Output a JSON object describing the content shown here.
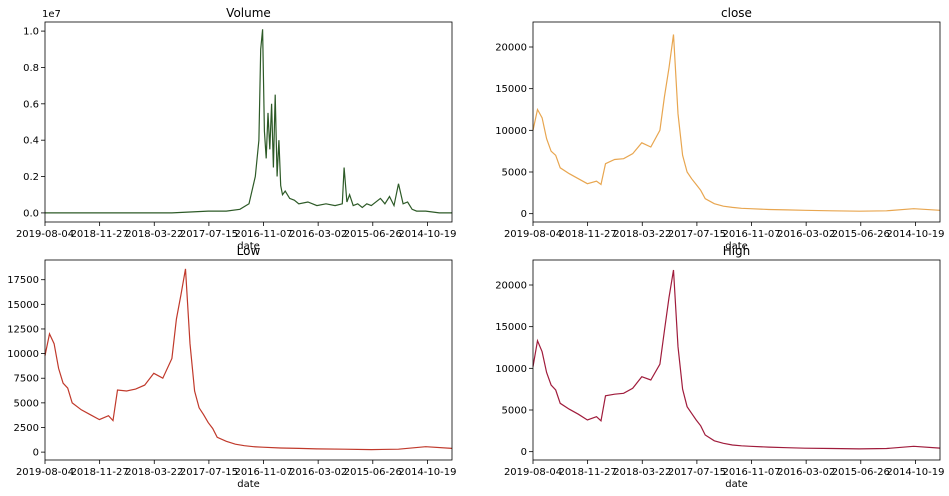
{
  "chart_data": [
    {
      "type": "line",
      "title": "Volume",
      "xlabel": "date",
      "ylabel": "",
      "y_offset_label": "1e7",
      "x_tick_labels": [
        "2019-08-04",
        "2018-11-27",
        "2018-03-22",
        "2017-07-15",
        "2016-11-07",
        "2016-03-02",
        "2015-06-26",
        "2014-10-19"
      ],
      "y_ticks": [
        0.0,
        0.2,
        0.4,
        0.6,
        0.8,
        1.0
      ],
      "y_tick_labels": [
        "0.0",
        "0.2",
        "0.4",
        "0.6",
        "0.8",
        "1.0"
      ],
      "ylim": [
        -0.05,
        1.05
      ],
      "color": "#2d5a27",
      "series": [
        {
          "x": [
            0,
            30,
            60,
            100,
            140,
            180,
            200,
            215,
            225,
            232,
            236,
            238,
            240,
            242,
            244,
            246,
            248,
            250,
            252,
            254,
            256,
            258,
            260,
            262,
            265,
            270,
            275,
            280,
            290,
            300,
            310,
            320,
            328,
            330,
            333,
            336,
            340,
            345,
            350,
            355,
            360,
            370,
            375,
            380,
            385,
            390,
            395,
            400,
            405,
            410,
            420,
            435,
            449
          ],
          "values": [
            0.0,
            0.0,
            0.0,
            0.0,
            0.0,
            0.01,
            0.01,
            0.02,
            0.05,
            0.2,
            0.4,
            0.9,
            1.01,
            0.45,
            0.3,
            0.55,
            0.35,
            0.6,
            0.25,
            0.65,
            0.2,
            0.4,
            0.15,
            0.1,
            0.12,
            0.08,
            0.07,
            0.05,
            0.06,
            0.04,
            0.05,
            0.04,
            0.05,
            0.25,
            0.06,
            0.1,
            0.04,
            0.05,
            0.03,
            0.05,
            0.04,
            0.08,
            0.05,
            0.09,
            0.04,
            0.16,
            0.05,
            0.06,
            0.02,
            0.01,
            0.01,
            0.0,
            0.0
          ]
        }
      ]
    },
    {
      "type": "line",
      "title": "close",
      "xlabel": "date",
      "ylabel": "",
      "x_tick_labels": [
        "2019-08-04",
        "2018-11-27",
        "2018-03-22",
        "2017-07-15",
        "2016-11-07",
        "2016-03-02",
        "2015-06-26",
        "2014-10-19"
      ],
      "y_ticks": [
        0,
        5000,
        10000,
        15000,
        20000
      ],
      "y_tick_labels": [
        "0",
        "5000",
        "10000",
        "15000",
        "20000"
      ],
      "ylim": [
        -1000,
        23000
      ],
      "color": "#e8a650",
      "series": [
        {
          "x": [
            0,
            5,
            10,
            15,
            20,
            25,
            30,
            40,
            50,
            60,
            70,
            75,
            80,
            90,
            100,
            110,
            120,
            130,
            140,
            145,
            150,
            155,
            160,
            165,
            170,
            175,
            180,
            185,
            190,
            200,
            210,
            220,
            230,
            240,
            260,
            280,
            300,
            330,
            360,
            390,
            420,
            449
          ],
          "values": [
            10000,
            12500,
            11500,
            9000,
            7500,
            7000,
            5500,
            4800,
            4200,
            3600,
            3900,
            3500,
            6000,
            6500,
            6600,
            7200,
            8500,
            8000,
            10000,
            14000,
            17500,
            21500,
            12000,
            7000,
            5000,
            4200,
            3500,
            2800,
            1800,
            1200,
            900,
            750,
            650,
            600,
            500,
            450,
            400,
            350,
            300,
            350,
            600,
            400
          ]
        }
      ]
    },
    {
      "type": "line",
      "title": "Low",
      "xlabel": "date",
      "ylabel": "",
      "x_tick_labels": [
        "2019-08-04",
        "2018-11-27",
        "2018-03-22",
        "2017-07-15",
        "2016-11-07",
        "2016-03-02",
        "2015-06-26",
        "2014-10-19"
      ],
      "y_ticks": [
        0,
        2500,
        5000,
        7500,
        10000,
        12500,
        15000,
        17500
      ],
      "y_tick_labels": [
        "0",
        "2500",
        "5000",
        "7500",
        "10000",
        "12500",
        "15000",
        "17500"
      ],
      "ylim": [
        -800,
        19500
      ],
      "color": "#c0392b",
      "series": [
        {
          "x": [
            0,
            5,
            10,
            15,
            20,
            25,
            30,
            40,
            50,
            60,
            70,
            75,
            80,
            90,
            100,
            110,
            120,
            130,
            140,
            145,
            150,
            155,
            160,
            165,
            170,
            175,
            180,
            185,
            190,
            200,
            210,
            220,
            230,
            240,
            260,
            280,
            300,
            330,
            360,
            390,
            420,
            449
          ],
          "values": [
            9800,
            12000,
            11000,
            8500,
            7000,
            6500,
            5000,
            4300,
            3800,
            3300,
            3700,
            3200,
            6300,
            6200,
            6400,
            6800,
            8000,
            7500,
            9500,
            13500,
            16000,
            18600,
            11000,
            6200,
            4500,
            3800,
            3000,
            2400,
            1500,
            1100,
            800,
            650,
            550,
            500,
            420,
            380,
            330,
            300,
            260,
            300,
            550,
            380
          ]
        }
      ]
    },
    {
      "type": "line",
      "title": "High",
      "xlabel": "date",
      "ylabel": "",
      "x_tick_labels": [
        "2019-08-04",
        "2018-11-27",
        "2018-03-22",
        "2017-07-15",
        "2016-11-07",
        "2016-03-02",
        "2015-06-26",
        "2014-10-19"
      ],
      "y_ticks": [
        0,
        5000,
        10000,
        15000,
        20000
      ],
      "y_tick_labels": [
        "0",
        "5000",
        "10000",
        "15000",
        "20000"
      ],
      "ylim": [
        -1000,
        23000
      ],
      "color": "#a01c3c",
      "series": [
        {
          "x": [
            0,
            5,
            10,
            15,
            20,
            25,
            30,
            40,
            50,
            60,
            70,
            75,
            80,
            90,
            100,
            110,
            120,
            130,
            140,
            145,
            150,
            155,
            160,
            165,
            170,
            175,
            180,
            185,
            190,
            200,
            210,
            220,
            230,
            240,
            260,
            280,
            300,
            330,
            360,
            390,
            420,
            449
          ],
          "values": [
            10200,
            13300,
            12000,
            9500,
            8000,
            7400,
            5800,
            5100,
            4500,
            3800,
            4200,
            3700,
            6700,
            6900,
            7000,
            7600,
            9000,
            8600,
            10500,
            14500,
            18500,
            21800,
            12600,
            7500,
            5400,
            4600,
            3800,
            3100,
            2000,
            1300,
            1000,
            800,
            700,
            650,
            550,
            480,
            420,
            380,
            330,
            380,
            650,
            430
          ]
        }
      ]
    }
  ]
}
